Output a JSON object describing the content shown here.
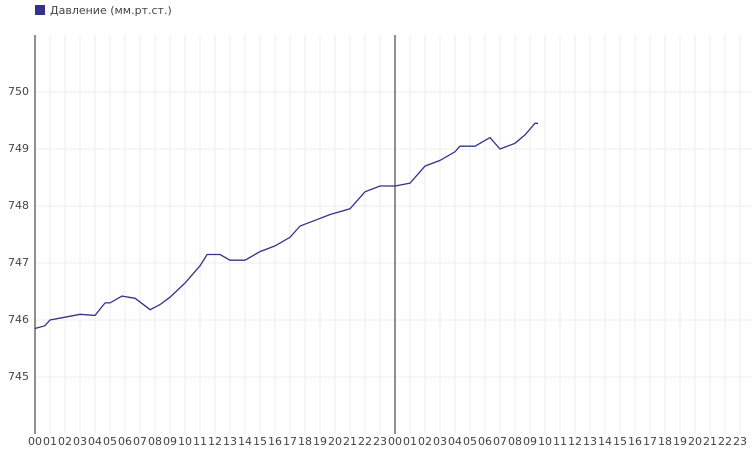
{
  "chart_data": {
    "type": "line",
    "legend_label": "Давление (мм.рт.ст.)",
    "series": [
      {
        "name": "Давление (мм.рт.ст.)",
        "color": "#33338a",
        "x": [
          0,
          0.67,
          1,
          2,
          3,
          4,
          4.67,
          5,
          5.8,
          6.67,
          7.67,
          8.33,
          9,
          10,
          11,
          11.47,
          12.33,
          13,
          14,
          15,
          16,
          17,
          17.67,
          18.67,
          19.67,
          21,
          22,
          23,
          24,
          25,
          26,
          27,
          28,
          28.33,
          29.33,
          30.33,
          31,
          32,
          32.67,
          33.33,
          33.53
        ],
        "values": [
          745.85,
          745.9,
          746.0,
          746.05,
          746.1,
          746.08,
          746.3,
          746.3,
          746.42,
          746.38,
          746.18,
          746.27,
          746.4,
          746.65,
          746.95,
          747.15,
          747.15,
          747.05,
          747.05,
          747.2,
          747.3,
          747.45,
          747.65,
          747.75,
          747.85,
          747.95,
          748.25,
          748.35,
          748.35,
          748.4,
          748.7,
          748.8,
          748.95,
          749.05,
          749.05,
          749.2,
          749.0,
          749.1,
          749.25,
          749.45,
          749.45
        ]
      }
    ],
    "xlim": [
      0,
      47.8
    ],
    "ylim": [
      744,
      751
    ],
    "yticks": [
      745,
      746,
      747,
      748,
      749,
      750
    ],
    "xticks": [
      {
        "value": 0,
        "label": "00"
      },
      {
        "value": 1,
        "label": "01"
      },
      {
        "value": 2,
        "label": "02"
      },
      {
        "value": 3,
        "label": "03"
      },
      {
        "value": 4,
        "label": "04"
      },
      {
        "value": 5,
        "label": "05"
      },
      {
        "value": 6,
        "label": "06"
      },
      {
        "value": 7,
        "label": "07"
      },
      {
        "value": 8,
        "label": "08"
      },
      {
        "value": 9,
        "label": "09"
      },
      {
        "value": 10,
        "label": "10"
      },
      {
        "value": 11,
        "label": "11"
      },
      {
        "value": 12,
        "label": "12"
      },
      {
        "value": 13,
        "label": "13"
      },
      {
        "value": 14,
        "label": "14"
      },
      {
        "value": 15,
        "label": "15"
      },
      {
        "value": 16,
        "label": "16"
      },
      {
        "value": 17,
        "label": "17"
      },
      {
        "value": 18,
        "label": "18"
      },
      {
        "value": 19,
        "label": "19"
      },
      {
        "value": 20,
        "label": "20"
      },
      {
        "value": 21,
        "label": "21"
      },
      {
        "value": 22,
        "label": "22"
      },
      {
        "value": 23,
        "label": "23"
      },
      {
        "value": 24,
        "label": "00"
      },
      {
        "value": 25,
        "label": "01"
      },
      {
        "value": 26,
        "label": "02"
      },
      {
        "value": 27,
        "label": "03"
      },
      {
        "value": 28,
        "label": "04"
      },
      {
        "value": 29,
        "label": "05"
      },
      {
        "value": 30,
        "label": "06"
      },
      {
        "value": 31,
        "label": "07"
      },
      {
        "value": 32,
        "label": "08"
      },
      {
        "value": 33,
        "label": "09"
      },
      {
        "value": 34,
        "label": "10"
      },
      {
        "value": 35,
        "label": "11"
      },
      {
        "value": 36,
        "label": "12"
      },
      {
        "value": 37,
        "label": "13"
      },
      {
        "value": 38,
        "label": "14"
      },
      {
        "value": 39,
        "label": "15"
      },
      {
        "value": 40,
        "label": "16"
      },
      {
        "value": 41,
        "label": "17"
      },
      {
        "value": 42,
        "label": "18"
      },
      {
        "value": 43,
        "label": "19"
      },
      {
        "value": 44,
        "label": "20"
      },
      {
        "value": 45,
        "label": "21"
      },
      {
        "value": 46,
        "label": "22"
      },
      {
        "value": 47,
        "label": "23"
      }
    ],
    "grid": true
  }
}
